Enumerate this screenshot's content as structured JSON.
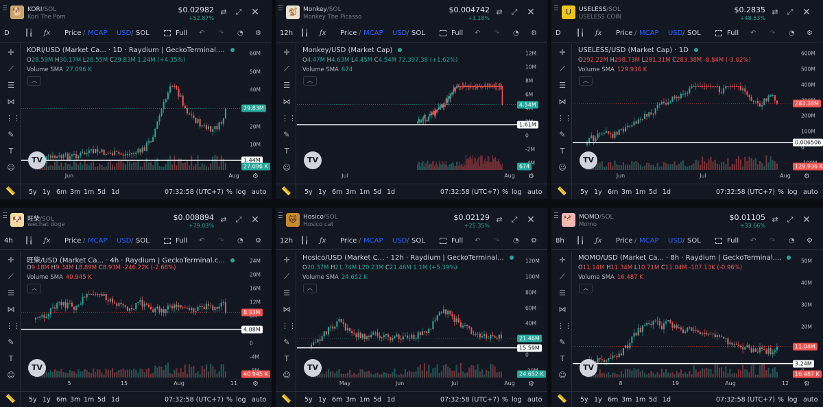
{
  "bottom_bar": {
    "timeframes": [
      "5y",
      "1y",
      "6m",
      "3m",
      "1m",
      "5d",
      "1d"
    ],
    "time": "07:32:58 (UTC+7)",
    "percent_label": "%",
    "log_label": "log",
    "auto_label": "auto"
  },
  "toolbar": {
    "price_label": "Price",
    "mcap_label": "MCAP",
    "usd_label": "USD",
    "sol_label": "SOL",
    "full_label": "Full",
    "volume_label": "Volume",
    "sma_label": "SMA"
  },
  "colors": {
    "up": "#26a69a",
    "down": "#ef5350",
    "background": "#131722",
    "accent": "#2962ff"
  },
  "panels": [
    {
      "symbol": "KORI",
      "quote": "/SOL",
      "token_name": "Kori The Pom",
      "avatar_icon": "pomeranian-avatar-icon",
      "avatar_color": "#c8a66b",
      "avatar_glyph": "🐕",
      "price": "$0.02982",
      "change": "+52.87%",
      "interval": "D",
      "legend_title": "KORI/USD (Market Ca... · 1D · Raydium | GeckoTerminal....",
      "ohlc": {
        "o": "28.59M",
        "h": "30.17M",
        "l": "28.55M",
        "c": "29.83M",
        "chg": "1.24M (+4.35%)",
        "dir": "up"
      },
      "volume_sma": "27.096 K",
      "volume_dir": "up",
      "y_ticks": [
        "60M",
        "50M",
        "40M",
        "30M",
        "20M",
        "10M",
        "0"
      ],
      "x_ticks": [
        "Jun",
        "Aug"
      ],
      "price_label": "29.83M",
      "price_label_color": "#26a69a",
      "hline_label": "1.44M",
      "vol_label": "27.096 K",
      "vol_label_color": "#26a69a",
      "chart_data": {
        "type": "candlestick",
        "x_range": [
          "2025-04-20",
          "2025-08-20"
        ],
        "y_range": [
          0,
          60000000
        ],
        "last_close": 29830000,
        "horizontal_line": 1440000,
        "series_shape": [
          0.2,
          0.2,
          0.3,
          0.5,
          0.8,
          1.2,
          1.5,
          1.8,
          2.2,
          2.8,
          3.5,
          4.0,
          5.0,
          4.2,
          3.8,
          3.5,
          3.2,
          3.0,
          2.8,
          3.5,
          4.0,
          5.0,
          8,
          12,
          20,
          30,
          38,
          50,
          45,
          40,
          32,
          28,
          25,
          22,
          20,
          18,
          20,
          22,
          30
        ]
      }
    },
    {
      "symbol": "Monkey",
      "quote": "/SOL",
      "token_name": "Monkey The Picasso",
      "avatar_icon": "monkey-avatar-icon",
      "avatar_color": "#e8e2d2",
      "avatar_glyph": "🐒",
      "price": "$0.004742",
      "change": "+3.18%",
      "interval": "12h",
      "legend_title": "Monkey/USD (Market Cap)",
      "ohlc": {
        "o": "4.47M",
        "h": "4.63M",
        "l": "4.45M",
        "c": "4.54M",
        "chg": "72,397.38 (+1.62%)",
        "dir": "up"
      },
      "volume_sma": "674",
      "volume_dir": "up",
      "y_ticks": [
        "12M",
        "10M",
        "8M",
        "6M",
        "4M",
        "2M",
        "0",
        "-2M",
        "-4M"
      ],
      "x_ticks": [
        "Jul",
        "Aug"
      ],
      "price_label": "4.54M",
      "price_label_color": "#26a69a",
      "hline_label": "1.61M",
      "vol_label": "674",
      "vol_label_color": "#26a69a",
      "chart_data": {
        "type": "candlestick",
        "x_range": [
          "2025-06-10",
          "2025-08-20"
        ],
        "y_range": [
          -4000000,
          12000000
        ],
        "last_close": 4540000,
        "horizontal_line": 1610000,
        "series_shape": [
          0.3,
          0.4,
          0.5,
          0.6,
          0.8,
          1.2,
          1.6,
          2.0,
          2.5,
          3.0,
          3.4,
          3.8,
          4.2,
          4.4,
          4.0,
          3.8,
          3.6,
          3.9,
          4.1,
          4.3,
          4.5,
          4.4,
          4.5
        ]
      }
    },
    {
      "symbol": "USELESS",
      "quote": "/SOL",
      "token_name": "USELESS COIN",
      "avatar_icon": "useless-coin-avatar-icon",
      "avatar_color": "#f0c419",
      "avatar_glyph": "U",
      "price": "$0.2835",
      "change": "+48.53%",
      "interval": "D",
      "legend_title": "USELESS/USD (Market Cap) · 1D",
      "ohlc": {
        "o": "292.22M",
        "h": "298.73M",
        "l": "281.31M",
        "c": "283.38M",
        "chg": "-8.84M (-3.02%)",
        "dir": "down"
      },
      "volume_sma": "129.936 K",
      "volume_dir": "down",
      "y_ticks": [
        "600M",
        "500M",
        "400M",
        "300M",
        "200M",
        "100M",
        "0",
        "-100M"
      ],
      "x_ticks": [
        "Jun",
        "Jul",
        "Aug"
      ],
      "price_label": "283.38M",
      "price_label_color": "#ef5350",
      "hline_label": "0.006506",
      "vol_label": "129.936 K",
      "vol_label_color": "#ef5350",
      "chart_data": {
        "type": "candlestick",
        "x_range": [
          "2025-05-15",
          "2025-08-20"
        ],
        "y_range": [
          -150000000,
          650000000
        ],
        "last_close": 283380000,
        "horizontal_line": 0.006506,
        "series_shape": [
          0.1,
          0.2,
          0.5,
          0.6,
          0.4,
          0.5,
          0.8,
          1.0,
          1.2,
          1.5,
          1.8,
          2.0,
          2.4,
          2.6,
          2.8,
          3.0,
          3.2,
          3.5,
          3.8,
          4.0,
          4.2,
          3.6,
          3.2,
          3.8,
          4.1,
          3.5,
          3.0,
          2.6,
          2.2,
          2.6,
          2.9,
          2.8
        ]
      }
    },
    {
      "symbol": "旺柴",
      "quote": "/SOL",
      "token_name": "wechat doge",
      "avatar_icon": "doge-avatar-icon",
      "avatar_color": "#f4d9a4",
      "avatar_glyph": "🐶",
      "price": "$0.008894",
      "change": "+79.03%",
      "interval": "4h",
      "legend_title": "旺柴/USD (Market Ca... · 4h · Raydium | GeckoTerminal.c...",
      "ohlc": {
        "o": "9.18M",
        "h": "9.34M",
        "l": "8.89M",
        "c": "8.93M",
        "chg": "-246.22K (-2.68%)",
        "dir": "down"
      },
      "volume_sma": "40.945 K",
      "volume_dir": "down",
      "y_ticks": [
        "24M",
        "20M",
        "16M",
        "12M",
        "8M",
        "4M",
        "0",
        "-4M",
        "-8M"
      ],
      "x_ticks": [
        "5",
        "15",
        "Aug",
        "11"
      ],
      "price_label": "8.93M",
      "price_label_color": "#ef5350",
      "hline_label": "4.08M",
      "vol_label": "40.945 K",
      "vol_label_color": "#ef5350",
      "chart_data": {
        "type": "candlestick",
        "x_range": [
          "2025-07-01",
          "2025-08-14"
        ],
        "y_range": [
          -8000000,
          24000000
        ],
        "last_close": 8930000,
        "horizontal_line": 4080000,
        "series_shape": [
          3.0,
          4.0,
          6.0,
          8.0,
          9.0,
          8.5,
          8.0,
          10.0,
          14.0,
          16.0,
          13.0,
          11.0,
          9.0,
          8.0,
          7.0,
          8.0,
          9.5,
          8.0,
          7.0,
          6.5,
          7.0,
          8.0,
          7.5,
          7.0,
          6.5,
          7.0,
          8.5,
          7.5,
          8.0,
          9.0
        ]
      }
    },
    {
      "symbol": "Hosico",
      "quote": "/SOL",
      "token_name": "Hosico cat",
      "avatar_icon": "cat-avatar-icon",
      "avatar_color": "#c98a2c",
      "avatar_glyph": "🐱",
      "price": "$0.02129",
      "change": "+25.35%",
      "interval": "12h",
      "legend_title": "Hosico/USD (Market C... · 12h · Raydium | GeckoTerminal...",
      "ohlc": {
        "o": "20.37M",
        "h": "21.74M",
        "l": "20.23M",
        "c": "21.46M",
        "chg": "1.1M (+5.39%)",
        "dir": "up"
      },
      "volume_sma": "24.652 K",
      "volume_dir": "up",
      "y_ticks": [
        "120M",
        "100M",
        "80M",
        "60M",
        "40M",
        "20M",
        "0",
        "-20M"
      ],
      "x_ticks": [
        "May",
        "Jun",
        "Jul",
        "Aug"
      ],
      "price_label": "21.46M",
      "price_label_color": "#26a69a",
      "hline_label": "15.59M",
      "vol_label": "24.652 K",
      "vol_label_color": "#26a69a",
      "chart_data": {
        "type": "candlestick",
        "x_range": [
          "2025-04-20",
          "2025-08-20"
        ],
        "y_range": [
          -20000000,
          120000000
        ],
        "last_close": 21460000,
        "horizontal_line": 15590000,
        "series_shape": [
          2,
          10,
          20,
          30,
          38,
          50,
          40,
          32,
          26,
          20,
          18,
          22,
          25,
          20,
          18,
          16,
          17,
          20,
          22,
          20,
          25,
          30,
          40,
          55,
          70,
          65,
          55,
          48,
          40,
          32,
          26,
          22,
          20,
          18,
          20,
          21
        ]
      }
    },
    {
      "symbol": "MOMO",
      "quote": "/SOL",
      "token_name": "Momo",
      "avatar_icon": "shiba-avatar-icon",
      "avatar_color": "#f2b6b6",
      "avatar_glyph": "🐕",
      "price": "$0.01105",
      "change": "+33.66%",
      "interval": "8h",
      "legend_title": "MOMO/USD (Market Ca... · 8h · Raydium | GeckoTerminal....",
      "ohlc": {
        "o": "11.14M",
        "h": "11.34M",
        "l": "10.71M",
        "c": "11.04M",
        "chg": "-107.13K (-0.96%)",
        "dir": "down"
      },
      "volume_sma": "16.487 K",
      "volume_dir": "down",
      "y_ticks": [
        "50M",
        "40M",
        "30M",
        "20M",
        "10M",
        "0"
      ],
      "x_ticks": [
        "8",
        "19",
        "Aug",
        "12"
      ],
      "price_label": "11.04M",
      "price_label_color": "#ef5350",
      "hline_label": "3.24M",
      "vol_label": "16.487 K",
      "vol_label_color": "#ef5350",
      "chart_data": {
        "type": "candlestick",
        "x_range": [
          "2025-07-01",
          "2025-08-15"
        ],
        "y_range": [
          0,
          50000000
        ],
        "last_close": 11040000,
        "horizontal_line": 3240000,
        "series_shape": [
          0.5,
          0.8,
          1.2,
          2.0,
          3.0,
          8,
          15,
          24,
          30,
          34,
          38,
          32,
          36,
          30,
          28,
          32,
          26,
          24,
          25,
          22,
          20,
          18,
          16,
          14,
          12,
          10,
          11,
          9,
          11
        ]
      }
    }
  ]
}
